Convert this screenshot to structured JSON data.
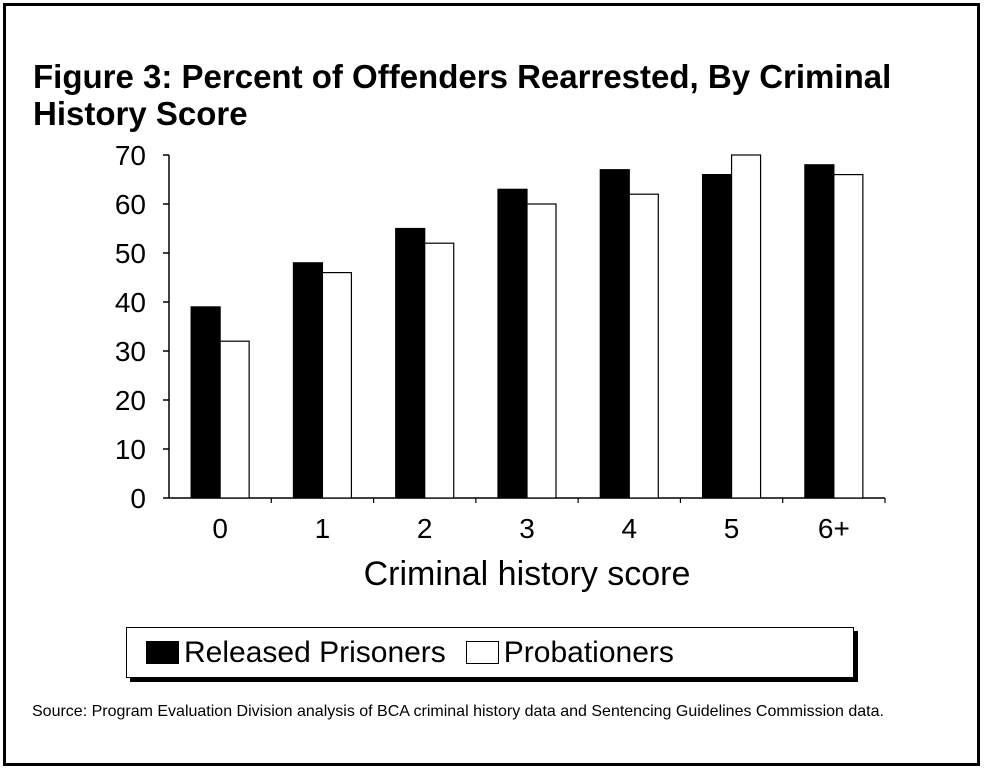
{
  "source_note": "Source:  Program Evaluation Division analysis of BCA criminal history data and Sentencing Guidelines Commission data.",
  "chart_data": {
    "type": "bar",
    "title": "Figure 3:  Percent of Offenders Rearrested, By Criminal History Score",
    "xlabel": "Criminal history score",
    "ylabel": "",
    "categories": [
      "0",
      "1",
      "2",
      "3",
      "4",
      "5",
      "6+"
    ],
    "ylim": [
      0,
      70
    ],
    "yticks": [
      0,
      10,
      20,
      30,
      40,
      50,
      60,
      70
    ],
    "grid": false,
    "legend_position": "bottom",
    "series": [
      {
        "name": "Released Prisoners",
        "color": "#000000",
        "values": [
          39,
          48,
          55,
          63,
          67,
          66,
          68
        ]
      },
      {
        "name": "Probationers",
        "color": "#ffffff",
        "values": [
          32,
          46,
          52,
          60,
          62,
          70,
          66
        ]
      }
    ]
  }
}
